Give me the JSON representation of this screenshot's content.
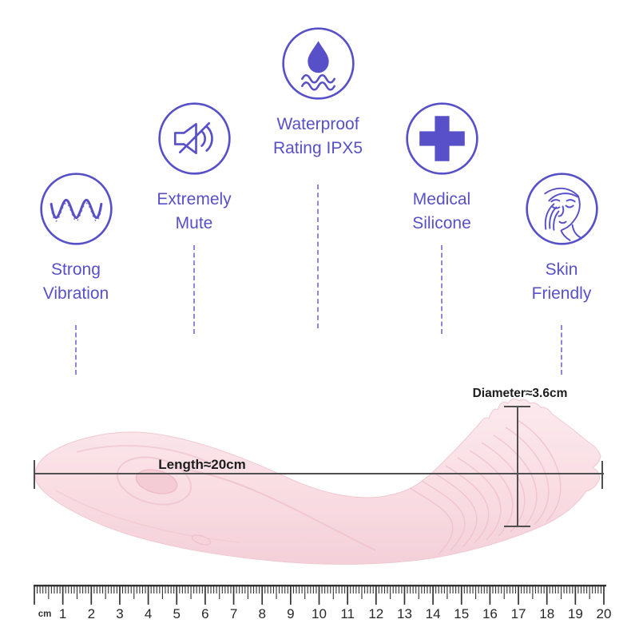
{
  "page": {
    "background": "#ffffff",
    "type": "product-infographic"
  },
  "features": [
    {
      "line1": "Strong",
      "line2": "Vibration",
      "icon": "vibration-wave-icon"
    },
    {
      "line1": "Extremely",
      "line2": "Mute",
      "icon": "muted-speaker-icon"
    },
    {
      "line1": "Waterproof",
      "line2": "Rating IPX5",
      "icon": "waterproof-drop-icon"
    },
    {
      "line1": "Medical",
      "line2": "Silicone",
      "icon": "medical-cross-icon"
    },
    {
      "line1": "Skin",
      "line2": "Friendly",
      "icon": "skin-friendly-face-icon"
    }
  ],
  "measurements": {
    "length_label": "Length≈20cm",
    "diameter_label": "Diameter≈3.6cm"
  },
  "ruler": {
    "unit": "cm",
    "numbers": [
      1,
      2,
      3,
      4,
      5,
      6,
      7,
      8,
      9,
      10,
      11,
      12,
      13,
      14,
      15,
      16,
      17,
      18,
      19,
      20
    ]
  },
  "colors": {
    "accent_purple": "#5750c8",
    "dash_purple": "#8e88d9",
    "product_pink": "#f9dde3",
    "product_pink_shadow": "#f0c6d0",
    "measure_line": "#4f4f4f",
    "label_text": "#1d1d1d",
    "ruler_ink": "#333333"
  }
}
